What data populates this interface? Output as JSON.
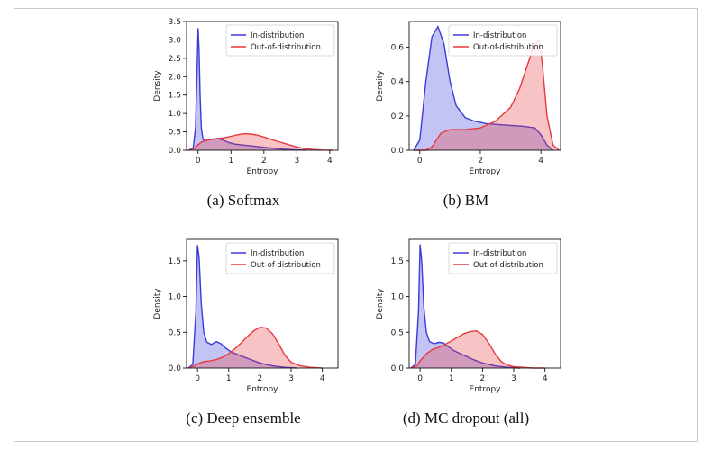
{
  "chart_data": [
    {
      "type": "area",
      "caption": "(a) Softmax",
      "xlabel": "Entropy",
      "ylabel": "Density",
      "xlim": [
        -0.35,
        4.25
      ],
      "ylim": [
        0,
        3.5
      ],
      "xticks": [
        "0",
        "1",
        "2",
        "3",
        "4"
      ],
      "yticks": [
        "0.0",
        "0.5",
        "1.0",
        "1.5",
        "2.0",
        "2.5",
        "3.0",
        "3.5"
      ],
      "legend_position": "top-right",
      "series": [
        {
          "name": "In-distribution",
          "color": "#3b3bdb",
          "x": [
            -0.3,
            -0.15,
            -0.08,
            -0.03,
            0.0,
            0.03,
            0.06,
            0.1,
            0.15,
            0.2,
            0.3,
            0.45,
            0.6,
            0.75,
            0.9,
            1.1,
            1.4,
            1.8,
            2.2,
            2.6,
            3.0,
            3.3
          ],
          "y": [
            0.0,
            0.05,
            0.6,
            2.2,
            3.32,
            2.7,
            1.5,
            0.6,
            0.3,
            0.25,
            0.28,
            0.3,
            0.32,
            0.28,
            0.22,
            0.17,
            0.14,
            0.1,
            0.06,
            0.03,
            0.01,
            0.0
          ]
        },
        {
          "name": "Out-of-distribution",
          "color": "#e8383d",
          "x": [
            -0.25,
            -0.1,
            0.0,
            0.1,
            0.2,
            0.4,
            0.6,
            0.8,
            1.0,
            1.2,
            1.4,
            1.6,
            1.8,
            2.0,
            2.2,
            2.5,
            2.8,
            3.0,
            3.2,
            3.5,
            3.8,
            4.1
          ],
          "y": [
            0.0,
            0.06,
            0.15,
            0.22,
            0.26,
            0.3,
            0.32,
            0.34,
            0.38,
            0.42,
            0.45,
            0.44,
            0.41,
            0.36,
            0.3,
            0.22,
            0.14,
            0.09,
            0.05,
            0.02,
            0.005,
            0.0
          ]
        }
      ]
    },
    {
      "type": "area",
      "caption": "(b) BM",
      "xlabel": "Entropy",
      "ylabel": "Density",
      "xlim": [
        -0.35,
        4.65
      ],
      "ylim": [
        0,
        0.75
      ],
      "xticks": [
        "0",
        "2",
        "4"
      ],
      "yticks": [
        "0.0",
        "0.2",
        "0.4",
        "0.6"
      ],
      "legend_position": "top-right",
      "series": [
        {
          "name": "In-distribution",
          "color": "#3b3bdb",
          "x": [
            -0.2,
            0.0,
            0.2,
            0.4,
            0.6,
            0.8,
            1.0,
            1.2,
            1.5,
            1.8,
            2.2,
            2.6,
            3.0,
            3.4,
            3.8,
            4.0,
            4.2,
            4.4
          ],
          "y": [
            0.0,
            0.06,
            0.4,
            0.66,
            0.72,
            0.62,
            0.4,
            0.26,
            0.19,
            0.17,
            0.155,
            0.15,
            0.145,
            0.14,
            0.13,
            0.09,
            0.03,
            0.0
          ]
        },
        {
          "name": "Out-of-distribution",
          "color": "#e8383d",
          "x": [
            -0.2,
            0.2,
            0.4,
            0.7,
            1.0,
            1.5,
            2.0,
            2.5,
            3.0,
            3.3,
            3.6,
            3.8,
            3.95,
            4.05,
            4.2,
            4.4,
            4.6
          ],
          "y": [
            0.0,
            0.0,
            0.02,
            0.1,
            0.12,
            0.12,
            0.13,
            0.17,
            0.25,
            0.36,
            0.52,
            0.62,
            0.64,
            0.5,
            0.2,
            0.03,
            0.0
          ]
        }
      ]
    },
    {
      "type": "area",
      "caption": "(c) Deep ensemble",
      "xlabel": "Entropy",
      "ylabel": "Density",
      "xlim": [
        -0.35,
        4.5
      ],
      "ylim": [
        0,
        1.8
      ],
      "xticks": [
        "0",
        "1",
        "2",
        "3",
        "4"
      ],
      "yticks": [
        "0.0",
        "0.5",
        "1.0",
        "1.5"
      ],
      "legend_position": "top-right",
      "series": [
        {
          "name": "In-distribution",
          "color": "#3b3bdb",
          "x": [
            -0.3,
            -0.15,
            -0.05,
            0.0,
            0.05,
            0.12,
            0.2,
            0.3,
            0.45,
            0.6,
            0.75,
            0.9,
            1.1,
            1.4,
            1.7,
            2.0,
            2.4,
            2.8,
            3.2
          ],
          "y": [
            0.0,
            0.05,
            0.8,
            1.72,
            1.55,
            0.9,
            0.5,
            0.36,
            0.33,
            0.37,
            0.34,
            0.28,
            0.22,
            0.17,
            0.12,
            0.07,
            0.03,
            0.01,
            0.0
          ]
        },
        {
          "name": "Out-of-distribution",
          "color": "#e8383d",
          "x": [
            -0.3,
            -0.1,
            0.0,
            0.2,
            0.4,
            0.6,
            0.8,
            1.0,
            1.2,
            1.4,
            1.6,
            1.8,
            2.0,
            2.2,
            2.4,
            2.6,
            2.8,
            3.0,
            3.3,
            3.6,
            4.0
          ],
          "y": [
            0.0,
            0.03,
            0.06,
            0.09,
            0.1,
            0.12,
            0.15,
            0.2,
            0.27,
            0.35,
            0.44,
            0.52,
            0.57,
            0.56,
            0.48,
            0.34,
            0.18,
            0.08,
            0.03,
            0.01,
            0.0
          ]
        }
      ]
    },
    {
      "type": "area",
      "caption": "(d) MC dropout (all)",
      "xlabel": "Entropy",
      "ylabel": "Density",
      "xlim": [
        -0.35,
        4.5
      ],
      "ylim": [
        0,
        1.8
      ],
      "xticks": [
        "0",
        "1",
        "2",
        "3",
        "4"
      ],
      "yticks": [
        "0.0",
        "0.5",
        "1.0",
        "1.5"
      ],
      "legend_position": "top-right",
      "series": [
        {
          "name": "In-distribution",
          "color": "#3b3bdb",
          "x": [
            -0.3,
            -0.15,
            -0.05,
            0.0,
            0.05,
            0.12,
            0.2,
            0.3,
            0.45,
            0.6,
            0.75,
            0.9,
            1.1,
            1.4,
            1.7,
            2.0,
            2.4,
            2.8,
            3.2
          ],
          "y": [
            0.0,
            0.05,
            0.8,
            1.73,
            1.5,
            0.85,
            0.5,
            0.37,
            0.34,
            0.36,
            0.35,
            0.3,
            0.24,
            0.18,
            0.12,
            0.07,
            0.03,
            0.01,
            0.0
          ]
        },
        {
          "name": "Out-of-distribution",
          "color": "#e8383d",
          "x": [
            -0.3,
            -0.1,
            0.0,
            0.2,
            0.4,
            0.6,
            0.8,
            1.0,
            1.2,
            1.4,
            1.6,
            1.8,
            2.0,
            2.2,
            2.4,
            2.6,
            2.8,
            3.0,
            3.3,
            3.6,
            4.0
          ],
          "y": [
            0.0,
            0.03,
            0.1,
            0.2,
            0.26,
            0.29,
            0.33,
            0.38,
            0.43,
            0.48,
            0.51,
            0.52,
            0.47,
            0.35,
            0.2,
            0.09,
            0.04,
            0.02,
            0.01,
            0.0,
            0.0
          ]
        }
      ]
    }
  ]
}
